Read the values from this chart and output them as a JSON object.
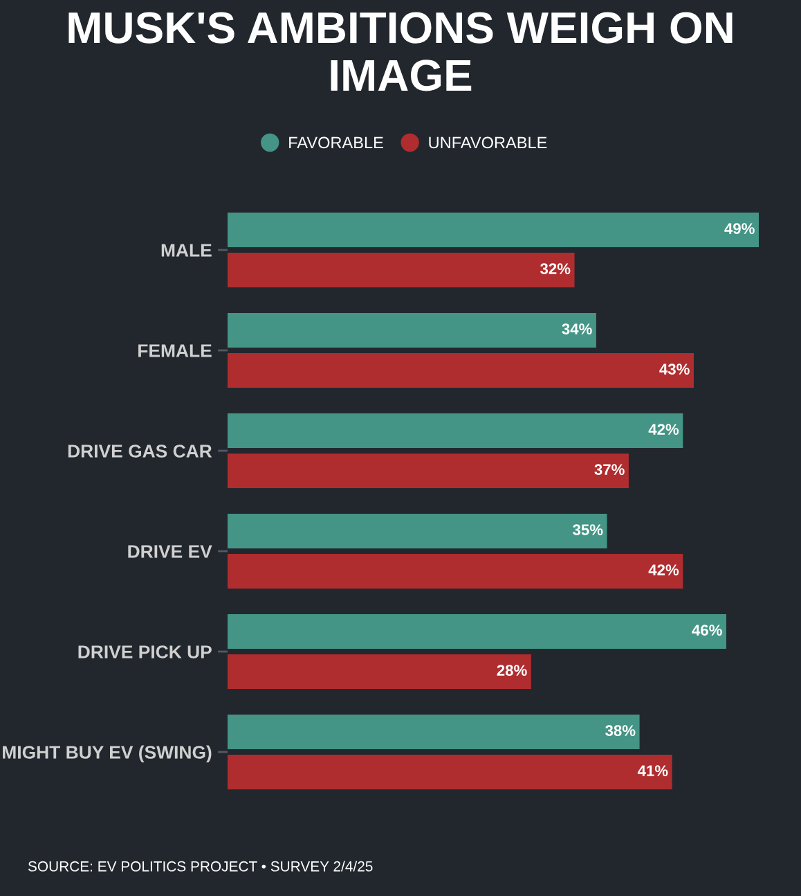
{
  "chart_data": {
    "type": "bar",
    "orientation": "horizontal",
    "title": "MUSK'S AMBITIONS WEIGH ON IMAGE",
    "categories": [
      "MALE",
      "FEMALE",
      "DRIVE GAS CAR",
      "DRIVE EV",
      "DRIVE PICK UP",
      "MIGHT BUY EV (SWING)"
    ],
    "series": [
      {
        "name": "FAVORABLE",
        "color": "#449585",
        "values": [
          49,
          34,
          42,
          35,
          46,
          38
        ],
        "value_labels": [
          "49%",
          "34%",
          "42%",
          "35%",
          "46%",
          "38%"
        ]
      },
      {
        "name": "UNFAVORABLE",
        "color": "#b02d2f",
        "values": [
          32,
          43,
          37,
          42,
          28,
          41
        ],
        "value_labels": [
          "32%",
          "43%",
          "37%",
          "42%",
          "28%",
          "41%"
        ]
      }
    ],
    "legend": "top",
    "grid": false,
    "tick_labels": "y",
    "annotations": [
      "SOURCE: EV POLITICS PROJECT • SURVEY 2/4/25"
    ]
  }
}
